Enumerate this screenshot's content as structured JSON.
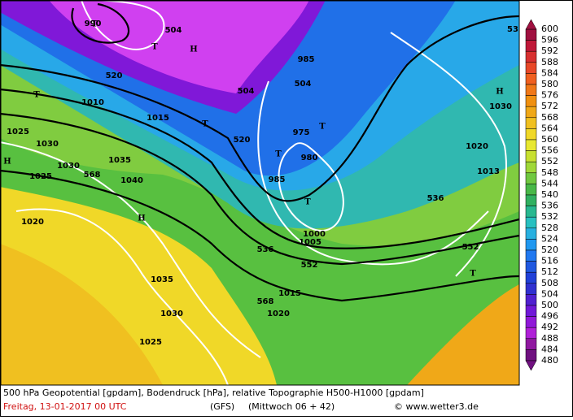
{
  "map": {
    "colorbar": {
      "labels": [
        600,
        596,
        592,
        588,
        584,
        580,
        576,
        572,
        568,
        564,
        560,
        556,
        552,
        548,
        544,
        540,
        536,
        532,
        528,
        524,
        520,
        516,
        512,
        508,
        504,
        500,
        496,
        492,
        488,
        484,
        480
      ],
      "colors": [
        "#a01040",
        "#c01838",
        "#d83030",
        "#e84828",
        "#f06020",
        "#f07818",
        "#f09010",
        "#f0a818",
        "#f0c020",
        "#f0d828",
        "#e8e830",
        "#c8e030",
        "#a0d838",
        "#70c840",
        "#48b848",
        "#30b060",
        "#28b890",
        "#28c0c0",
        "#28b0e0",
        "#2098f0",
        "#2078f0",
        "#2058e0",
        "#2040d8",
        "#3030d0",
        "#5020d0",
        "#7018d8",
        "#9018d8",
        "#b020d8",
        "#9018a0",
        "#701080"
      ]
    },
    "labels": [
      "504",
      "520",
      "504",
      "504",
      "520",
      "536",
      "552",
      "568",
      "568",
      "536",
      "552",
      "1030",
      "1025",
      "1020",
      "1030",
      "1035",
      "1040",
      "1025",
      "1035",
      "1030",
      "1025",
      "1015",
      "990",
      "985",
      "975",
      "980",
      "985",
      "1000",
      "1005",
      "1015",
      "1020",
      "1020",
      "1013",
      "1030",
      "1010",
      "H",
      "T",
      "T",
      "T",
      "H",
      "T",
      "T",
      "T",
      "H",
      "H",
      "T",
      "T",
      "53"
    ],
    "footer": {
      "line1": "500 hPa Geopotential [gpdam], Bodendruck [hPa], relative Topographie H500-H1000 [gpdam]",
      "date": "Freitag, 13-01-2017  00 UTC",
      "model": "(GFS)",
      "run": "(Mittwoch 06 + 42)",
      "copyright": "© www.wetter3.de"
    }
  }
}
